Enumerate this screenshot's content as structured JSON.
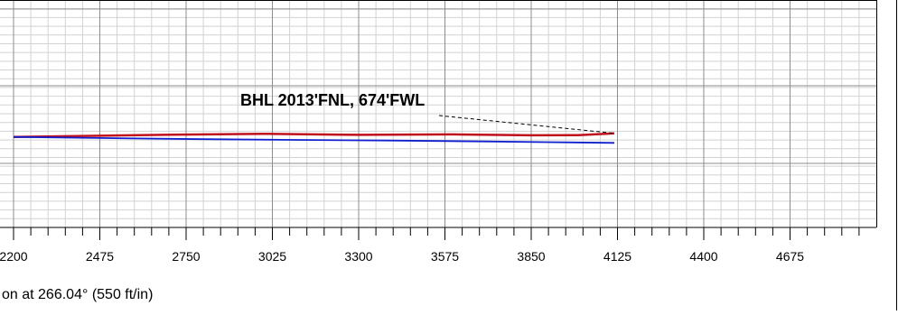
{
  "chart_data": {
    "type": "line",
    "xlabel": "on at 266.04° (550 ft/in)",
    "x_ticks": [
      2200,
      2475,
      2750,
      3025,
      3300,
      3575,
      3850,
      4125,
      4400,
      4675
    ],
    "x_tick_labels": [
      "2200",
      "2475",
      "2750",
      "3025",
      "3300",
      "3575",
      "3850",
      "4125",
      "4400",
      "4675"
    ],
    "xlim": [
      2200,
      5030
    ],
    "ylim": [
      0,
      1
    ],
    "grid": true,
    "annotation": {
      "text": "BHL 2013'FNL, 674'FWL",
      "target_x": 4115,
      "target_y": 0.414
    },
    "series": [
      {
        "color": "#c0101c",
        "x": [
          2200,
          2400,
          2700,
          3000,
          3300,
          3600,
          3850,
          4000,
          4115
        ],
        "y": [
          0.398,
          0.402,
          0.408,
          0.412,
          0.407,
          0.409,
          0.405,
          0.406,
          0.414
        ]
      },
      {
        "color": "#1020d0",
        "x": [
          2200,
          2500,
          2800,
          3100,
          3400,
          3700,
          3900,
          4115
        ],
        "y": [
          0.398,
          0.393,
          0.388,
          0.385,
          0.382,
          0.378,
          0.375,
          0.372
        ]
      }
    ]
  }
}
